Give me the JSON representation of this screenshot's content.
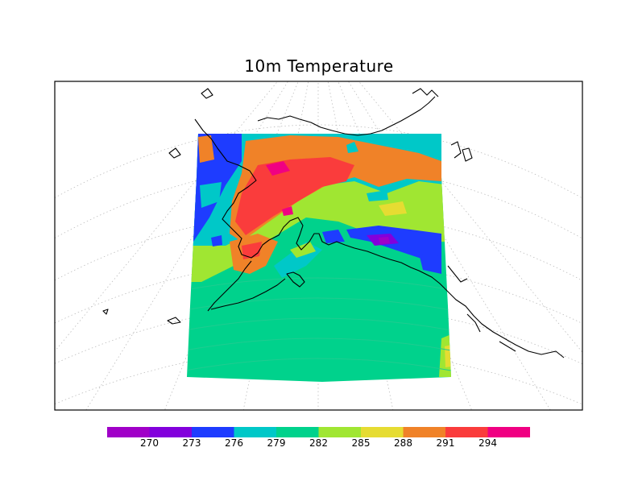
{
  "title": "10m Temperature",
  "colorbar": {
    "colors": [
      "#a000c8",
      "#8200dc",
      "#1e3cff",
      "#00c8c8",
      "#00d28c",
      "#a0e632",
      "#e6dc32",
      "#f08228",
      "#fa3c3c",
      "#f00082"
    ],
    "labels": [
      "270",
      "273",
      "276",
      "279",
      "282",
      "285",
      "288",
      "291",
      "294"
    ]
  }
}
